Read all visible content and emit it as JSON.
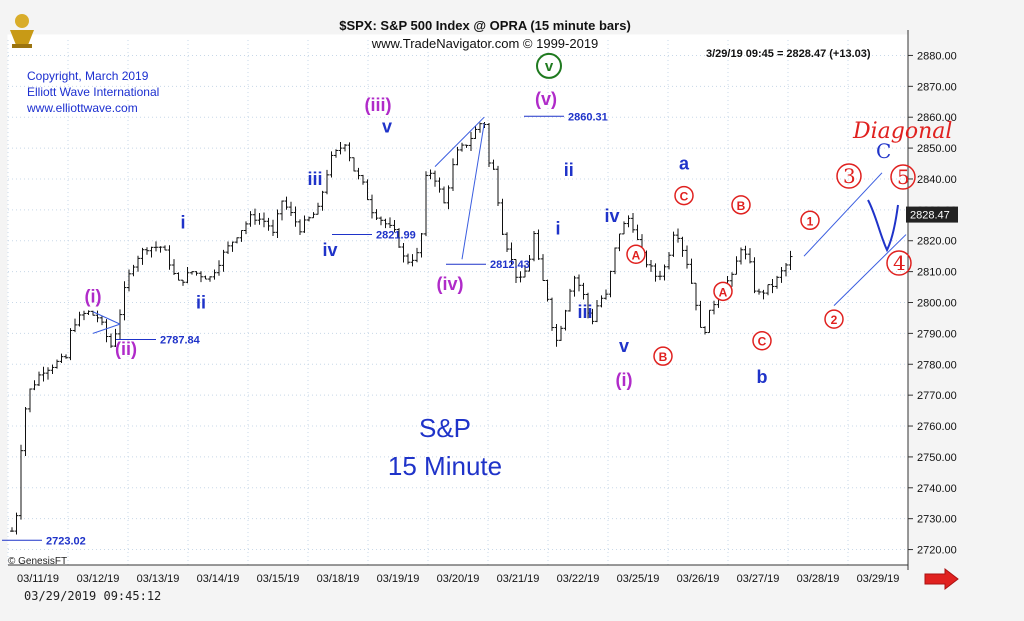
{
  "header": {
    "title": "$SPX: S&P 500 Index @ OPRA (15 minute bars)",
    "subtitle": "www.TradeNavigator.com © 1999-2019"
  },
  "copyright_block": [
    "Copyright, March 2019",
    "Elliott Wave International",
    "www.elliottwave.com"
  ],
  "last_quote": "3/29/19 09:45 = 2828.47 (+13.03)",
  "price_tag": "2828.47",
  "chart_label": [
    "S&P",
    "15 Minute"
  ],
  "timestamp": "03/29/2019 09:45:12",
  "genesis_label": "© GenesisFT",
  "colors": {
    "bars": "#111111",
    "blue": "#1f33c9",
    "magenta": "#b02bc9",
    "red": "#e0211f",
    "green": "#1f7a1f",
    "grid": "#c8d8e8",
    "channel": "#3a5de0"
  },
  "chart_data": {
    "type": "ohlc",
    "title": "$SPX: S&P 500 Index @ OPRA (15 minute bars)",
    "ylim": [
      2715,
      2885
    ],
    "y_ticks": [
      "2720.00",
      "2730.00",
      "2740.00",
      "2750.00",
      "2760.00",
      "2770.00",
      "2780.00",
      "2790.00",
      "2800.00",
      "2810.00",
      "2820.00",
      "2830.00",
      "2840.00",
      "2850.00",
      "2860.00",
      "2870.00",
      "2880.00"
    ],
    "x_ticks": [
      "03/11/19",
      "03/12/19",
      "03/13/19",
      "03/14/19",
      "03/15/19",
      "03/18/19",
      "03/19/19",
      "03/20/19",
      "03/21/19",
      "03/22/19",
      "03/25/19",
      "03/26/19",
      "03/27/19",
      "03/28/19",
      "03/29/19"
    ],
    "path_points": [
      [
        0.0,
        2726
      ],
      [
        0.08,
        2732
      ],
      [
        0.12,
        2748
      ],
      [
        0.25,
        2770
      ],
      [
        0.5,
        2778
      ],
      [
        0.9,
        2782
      ],
      [
        1.0,
        2793
      ],
      [
        1.25,
        2797
      ],
      [
        1.45,
        2795
      ],
      [
        1.55,
        2790
      ],
      [
        1.65,
        2786
      ],
      [
        1.75,
        2792
      ],
      [
        1.9,
        2806
      ],
      [
        2.05,
        2814
      ],
      [
        2.25,
        2818
      ],
      [
        2.5,
        2818
      ],
      [
        2.65,
        2812
      ],
      [
        2.75,
        2806
      ],
      [
        3.0,
        2810
      ],
      [
        3.3,
        2808
      ],
      [
        3.5,
        2815
      ],
      [
        3.75,
        2822
      ],
      [
        4.0,
        2828
      ],
      [
        4.25,
        2826
      ],
      [
        4.35,
        2822
      ],
      [
        4.5,
        2833
      ],
      [
        4.8,
        2824
      ],
      [
        5.1,
        2830
      ],
      [
        5.3,
        2846
      ],
      [
        5.55,
        2852
      ],
      [
        5.7,
        2843
      ],
      [
        5.85,
        2838
      ],
      [
        6.0,
        2830
      ],
      [
        6.4,
        2822
      ],
      [
        6.55,
        2813
      ],
      [
        6.8,
        2816
      ],
      [
        6.9,
        2840
      ],
      [
        7.0,
        2843
      ],
      [
        7.2,
        2832
      ],
      [
        7.4,
        2848
      ],
      [
        7.6,
        2852
      ],
      [
        7.8,
        2858
      ],
      [
        7.87,
        2859
      ],
      [
        7.95,
        2845
      ],
      [
        8.05,
        2842
      ],
      [
        8.15,
        2825
      ],
      [
        8.3,
        2815
      ],
      [
        8.45,
        2806
      ],
      [
        8.6,
        2812
      ],
      [
        8.7,
        2822
      ],
      [
        8.8,
        2810
      ],
      [
        8.95,
        2800
      ],
      [
        9.05,
        2786
      ],
      [
        9.2,
        2796
      ],
      [
        9.35,
        2809
      ],
      [
        9.5,
        2804
      ],
      [
        9.65,
        2793
      ],
      [
        9.8,
        2802
      ],
      [
        9.88,
        2800
      ],
      [
        10.1,
        2822
      ],
      [
        10.3,
        2828
      ],
      [
        10.5,
        2815
      ],
      [
        10.75,
        2808
      ],
      [
        10.9,
        2812
      ],
      [
        11.05,
        2825
      ],
      [
        11.25,
        2813
      ],
      [
        11.4,
        2800
      ],
      [
        11.5,
        2788
      ],
      [
        11.6,
        2795
      ],
      [
        11.8,
        2805
      ],
      [
        12.0,
        2808
      ],
      [
        12.15,
        2818
      ],
      [
        12.3,
        2812
      ],
      [
        12.4,
        2802
      ],
      [
        12.55,
        2804
      ],
      [
        12.7,
        2806
      ],
      [
        12.9,
        2812
      ],
      [
        13.0,
        2815
      ]
    ],
    "annotations": [
      {
        "text": "2723.02",
        "x": 0.3,
        "y": 2723.0,
        "color": "blue"
      },
      {
        "text": "2787.84",
        "x": 2.2,
        "y": 2788.0,
        "color": "blue"
      },
      {
        "text": "2821.99",
        "x": 5.8,
        "y": 2822.0,
        "color": "blue"
      },
      {
        "text": "2812.43",
        "x": 7.7,
        "y": 2812.4,
        "color": "blue"
      },
      {
        "text": "2860.31",
        "x": 9.0,
        "y": 2860.3,
        "color": "blue"
      }
    ]
  },
  "wave_labels": {
    "magenta": [
      {
        "text": "(i)",
        "x": 1.35,
        "y": 2800
      },
      {
        "text": "(ii)",
        "x": 1.9,
        "y": 2783
      },
      {
        "text": "(iii)",
        "x": 6.1,
        "y": 2862
      },
      {
        "text": "(iv)",
        "x": 7.3,
        "y": 2804
      },
      {
        "text": "(v)",
        "x": 8.9,
        "y": 2864
      },
      {
        "text": "(i)",
        "x": 10.2,
        "y": 2773
      }
    ],
    "blue": [
      {
        "text": "i",
        "x": 2.85,
        "y": 2824
      },
      {
        "text": "ii",
        "x": 3.15,
        "y": 2798
      },
      {
        "text": "iii",
        "x": 5.05,
        "y": 2838
      },
      {
        "text": "iv",
        "x": 5.3,
        "y": 2815
      },
      {
        "text": "v",
        "x": 6.25,
        "y": 2855
      },
      {
        "text": "ii",
        "x": 9.28,
        "y": 2841
      },
      {
        "text": "i",
        "x": 9.1,
        "y": 2822
      },
      {
        "text": "iii",
        "x": 9.55,
        "y": 2795
      },
      {
        "text": "iv",
        "x": 10.0,
        "y": 2826
      },
      {
        "text": "v",
        "x": 10.2,
        "y": 2784
      },
      {
        "text": "a",
        "x": 11.2,
        "y": 2843
      },
      {
        "text": "b",
        "x": 12.5,
        "y": 2774
      }
    ],
    "red_circled": [
      {
        "text": "A",
        "x": 10.4,
        "y": 2814
      },
      {
        "text": "B",
        "x": 10.85,
        "y": 2781
      },
      {
        "text": "C",
        "x": 11.2,
        "y": 2833
      },
      {
        "text": "A",
        "x": 11.85,
        "y": 2802
      },
      {
        "text": "B",
        "x": 12.15,
        "y": 2830
      },
      {
        "text": "C",
        "x": 12.5,
        "y": 2786
      },
      {
        "text": "1",
        "x": 13.3,
        "y": 2825
      },
      {
        "text": "2",
        "x": 13.7,
        "y": 2793
      }
    ],
    "green_circled": [
      {
        "text": "v",
        "x": 8.95,
        "y": 2875
      }
    ]
  },
  "handwritten": {
    "word": "Diagonal",
    "marks": [
      "3",
      "5",
      "4",
      "C"
    ]
  }
}
